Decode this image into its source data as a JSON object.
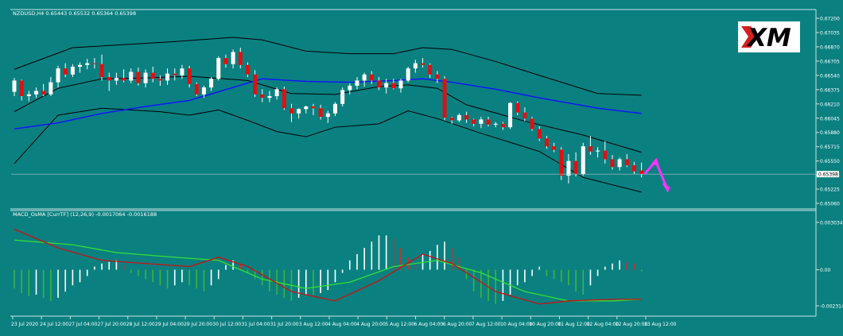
{
  "chart_data": {
    "type": "candlestick",
    "symbol_header": "NZDUSD,H4  0.65443 0.65532 0.65364 0.65398",
    "indicator_header": "MACD_OsMA [CurrTF] (12,26,9) -0.0017064 -0.0016188",
    "price_ticks": [
      "0.67200",
      "0.67035",
      "0.66870",
      "0.66705",
      "0.66540",
      "0.66375",
      "0.66210",
      "0.66045",
      "0.65880",
      "0.65715",
      "0.65550",
      "0.65385",
      "0.65225",
      "0.65060"
    ],
    "price_range": [
      0.6506,
      0.672
    ],
    "current_price_label": "0.65398",
    "current_price": 0.65398,
    "macd_ticks": [
      "0.003034",
      "0.00",
      "-0.002314"
    ],
    "macd_range": [
      -0.002314,
      0.003034
    ],
    "time_labels": [
      "23 Jul 2020",
      "24 Jul 12:00",
      "27 Jul 04:00",
      "27 Jul 20:00",
      "28 Jul 12:00",
      "29 Jul 04:00",
      "29 Jul 20:00",
      "30 Jul 12:00",
      "31 Jul 04:00",
      "31 Jul 20:00",
      "3 Aug 12:00",
      "4 Aug 04:00",
      "4 Aug 20:00",
      "5 Aug 12:00",
      "6 Aug 04:00",
      "6 Aug 20:00",
      "7 Aug 12:00",
      "10 Aug 04:00",
      "10 Aug 20:00",
      "11 Aug 12:00",
      "12 Aug 04:00",
      "12 Aug 20:00",
      "13 Aug 12:00"
    ],
    "logo_text": "XM",
    "colors": {
      "background": "#0b8080",
      "bull_candle": "#ffffff",
      "bear_candle": "#e01010",
      "wick": "#ffffff",
      "bollinger": "#000000",
      "moving_average": "#1010ff",
      "macd_line": "#cc1010",
      "signal_line": "#33e033",
      "hist_up": "#ffffff",
      "hist_down": "#3fb33f",
      "hist_red": "#c83030",
      "projection_arrow": "#ff33ff"
    },
    "candles": [
      [
        0.6635,
        0.6651,
        0.663,
        0.6648
      ],
      [
        0.6648,
        0.6649,
        0.6625,
        0.663
      ],
      [
        0.663,
        0.6636,
        0.6624,
        0.6632
      ],
      [
        0.6632,
        0.664,
        0.6628,
        0.6636
      ],
      [
        0.6636,
        0.6644,
        0.663,
        0.6632
      ],
      [
        0.6632,
        0.6652,
        0.663,
        0.6646
      ],
      [
        0.6646,
        0.6665,
        0.664,
        0.6662
      ],
      [
        0.6662,
        0.6668,
        0.6652,
        0.6655
      ],
      [
        0.6655,
        0.6667,
        0.6652,
        0.6664
      ],
      [
        0.6664,
        0.6669,
        0.6657,
        0.6666
      ],
      [
        0.6666,
        0.6673,
        0.6661,
        0.6668
      ],
      [
        0.6668,
        0.6674,
        0.6662,
        0.6667
      ],
      [
        0.6667,
        0.6678,
        0.6648,
        0.6652
      ],
      [
        0.6652,
        0.6657,
        0.6636,
        0.6648
      ],
      [
        0.6648,
        0.6657,
        0.6643,
        0.6651
      ],
      [
        0.6651,
        0.6661,
        0.6646,
        0.6648
      ],
      [
        0.6648,
        0.6662,
        0.6645,
        0.6658
      ],
      [
        0.6658,
        0.6663,
        0.6642,
        0.6645
      ],
      [
        0.6645,
        0.6661,
        0.664,
        0.6657
      ],
      [
        0.6657,
        0.6664,
        0.6646,
        0.665
      ],
      [
        0.665,
        0.6654,
        0.6642,
        0.6648
      ],
      [
        0.6648,
        0.6662,
        0.6643,
        0.6656
      ],
      [
        0.6656,
        0.6662,
        0.6648,
        0.6654
      ],
      [
        0.6654,
        0.6666,
        0.665,
        0.6662
      ],
      [
        0.6662,
        0.6665,
        0.664,
        0.6644
      ],
      [
        0.6644,
        0.6646,
        0.663,
        0.6632
      ],
      [
        0.6632,
        0.6642,
        0.6628,
        0.664
      ],
      [
        0.664,
        0.6652,
        0.6636,
        0.665
      ],
      [
        0.665,
        0.6676,
        0.6648,
        0.6674
      ],
      [
        0.6674,
        0.6678,
        0.6663,
        0.6667
      ],
      [
        0.6667,
        0.6684,
        0.6662,
        0.6681
      ],
      [
        0.6681,
        0.6686,
        0.6662,
        0.6666
      ],
      [
        0.6666,
        0.6669,
        0.6652,
        0.6655
      ],
      [
        0.6655,
        0.666,
        0.6629,
        0.6632
      ],
      [
        0.6632,
        0.6638,
        0.6623,
        0.6628
      ],
      [
        0.6628,
        0.6636,
        0.6623,
        0.663
      ],
      [
        0.663,
        0.664,
        0.6626,
        0.6638
      ],
      [
        0.6638,
        0.6641,
        0.6614,
        0.6616
      ],
      [
        0.6616,
        0.6621,
        0.66,
        0.661
      ],
      [
        0.661,
        0.6616,
        0.6604,
        0.6615
      ],
      [
        0.6615,
        0.6619,
        0.661,
        0.6618
      ],
      [
        0.6618,
        0.6621,
        0.6608,
        0.6616
      ],
      [
        0.6616,
        0.662,
        0.6603,
        0.6606
      ],
      [
        0.6606,
        0.6613,
        0.6599,
        0.661
      ],
      [
        0.661,
        0.6623,
        0.6607,
        0.6621
      ],
      [
        0.6621,
        0.664,
        0.6618,
        0.6637
      ],
      [
        0.6637,
        0.6645,
        0.6632,
        0.6642
      ],
      [
        0.6642,
        0.6652,
        0.6638,
        0.6648
      ],
      [
        0.6648,
        0.6657,
        0.6641,
        0.6655
      ],
      [
        0.6655,
        0.6659,
        0.6644,
        0.6648
      ],
      [
        0.6648,
        0.6652,
        0.6637,
        0.664
      ],
      [
        0.664,
        0.665,
        0.6633,
        0.6645
      ],
      [
        0.6645,
        0.665,
        0.6638,
        0.6639
      ],
      [
        0.6639,
        0.665,
        0.6634,
        0.6648
      ],
      [
        0.6648,
        0.6664,
        0.6646,
        0.6662
      ],
      [
        0.6662,
        0.6672,
        0.6657,
        0.6668
      ],
      [
        0.6668,
        0.6674,
        0.6663,
        0.6666
      ],
      [
        0.6666,
        0.6668,
        0.6651,
        0.6655
      ],
      [
        0.6655,
        0.6659,
        0.6645,
        0.665
      ],
      [
        0.665,
        0.6653,
        0.6602,
        0.6605
      ],
      [
        0.6605,
        0.6606,
        0.6598,
        0.6602
      ],
      [
        0.6602,
        0.661,
        0.66,
        0.6608
      ],
      [
        0.6608,
        0.6612,
        0.6599,
        0.6603
      ],
      [
        0.6603,
        0.6604,
        0.6595,
        0.6598
      ],
      [
        0.6598,
        0.6606,
        0.6593,
        0.6603
      ],
      [
        0.6603,
        0.6606,
        0.6595,
        0.6597
      ],
      [
        0.6597,
        0.66,
        0.6594,
        0.6598
      ],
      [
        0.6598,
        0.66,
        0.6591,
        0.6594
      ],
      [
        0.6594,
        0.6623,
        0.6592,
        0.6622
      ],
      [
        0.6622,
        0.6624,
        0.6608,
        0.6611
      ],
      [
        0.6611,
        0.6617,
        0.6601,
        0.6604
      ],
      [
        0.6604,
        0.6606,
        0.659,
        0.6592
      ],
      [
        0.6592,
        0.6595,
        0.6578,
        0.6581
      ],
      [
        0.6581,
        0.6584,
        0.6569,
        0.6572
      ],
      [
        0.6572,
        0.6576,
        0.6565,
        0.6568
      ],
      [
        0.6568,
        0.6571,
        0.6533,
        0.6538
      ],
      [
        0.6538,
        0.6563,
        0.6529,
        0.6555
      ],
      [
        0.6555,
        0.6565,
        0.6537,
        0.654
      ],
      [
        0.654,
        0.6576,
        0.6538,
        0.6572
      ],
      [
        0.6572,
        0.6584,
        0.6562,
        0.6566
      ],
      [
        0.6566,
        0.6571,
        0.6559,
        0.6567
      ],
      [
        0.6567,
        0.6578,
        0.6552,
        0.6557
      ],
      [
        0.6557,
        0.6562,
        0.6545,
        0.6548
      ],
      [
        0.6548,
        0.6559,
        0.6544,
        0.6557
      ],
      [
        0.6557,
        0.6563,
        0.6548,
        0.655
      ],
      [
        0.655,
        0.6554,
        0.654,
        0.6543
      ],
      [
        0.6544,
        0.6553,
        0.6536,
        0.654
      ]
    ],
    "bollinger_upper": [
      [
        0,
        0.6661
      ],
      [
        8,
        0.6686
      ],
      [
        14,
        0.6689
      ],
      [
        22,
        0.6693
      ],
      [
        30,
        0.6698
      ],
      [
        34,
        0.6695
      ],
      [
        40,
        0.6682
      ],
      [
        46,
        0.6679
      ],
      [
        52,
        0.6679
      ],
      [
        56,
        0.6686
      ],
      [
        60,
        0.6684
      ],
      [
        66,
        0.667
      ],
      [
        72,
        0.6654
      ],
      [
        80,
        0.6633
      ],
      [
        86,
        0.6631
      ]
    ],
    "bollinger_middle": [
      [
        0,
        0.6612
      ],
      [
        6,
        0.6639
      ],
      [
        12,
        0.665
      ],
      [
        18,
        0.6651
      ],
      [
        24,
        0.6653
      ],
      [
        32,
        0.6648
      ],
      [
        38,
        0.6633
      ],
      [
        44,
        0.6632
      ],
      [
        50,
        0.6641
      ],
      [
        54,
        0.6643
      ],
      [
        58,
        0.6639
      ],
      [
        62,
        0.662
      ],
      [
        70,
        0.6601
      ],
      [
        78,
        0.6585
      ],
      [
        86,
        0.6565
      ]
    ],
    "bollinger_lower": [
      [
        0,
        0.6552
      ],
      [
        6,
        0.6608
      ],
      [
        12,
        0.6616
      ],
      [
        20,
        0.6612
      ],
      [
        24,
        0.6608
      ],
      [
        28,
        0.6614
      ],
      [
        32,
        0.6602
      ],
      [
        36,
        0.6589
      ],
      [
        40,
        0.6583
      ],
      [
        44,
        0.6594
      ],
      [
        50,
        0.6598
      ],
      [
        54,
        0.6613
      ],
      [
        58,
        0.6604
      ],
      [
        64,
        0.6587
      ],
      [
        72,
        0.6566
      ],
      [
        78,
        0.6536
      ],
      [
        86,
        0.6519
      ]
    ],
    "moving_average": [
      [
        0,
        0.6592
      ],
      [
        6,
        0.6599
      ],
      [
        12,
        0.661
      ],
      [
        18,
        0.6618
      ],
      [
        24,
        0.6625
      ],
      [
        30,
        0.664
      ],
      [
        34,
        0.665
      ],
      [
        40,
        0.6647
      ],
      [
        46,
        0.6646
      ],
      [
        52,
        0.6648
      ],
      [
        56,
        0.665
      ],
      [
        60,
        0.6646
      ],
      [
        66,
        0.6638
      ],
      [
        72,
        0.6628
      ],
      [
        80,
        0.6616
      ],
      [
        86,
        0.661
      ]
    ],
    "macd_histogram": [
      -0.0012,
      -0.0015,
      -0.0017,
      -0.0016,
      -0.0018,
      -0.002,
      -0.0018,
      -0.0014,
      -0.001,
      -0.0008,
      -0.0004,
      0.0002,
      0.0004,
      0.0005,
      0.0006,
      0.0003,
      -0.0002,
      -0.0004,
      -0.0006,
      -0.0008,
      -0.001,
      -0.0012,
      -0.001,
      -0.0008,
      -0.001,
      -0.0012,
      -0.0014,
      -0.001,
      -0.0006,
      0.0003,
      0.0006,
      0.0004,
      -0.0002,
      -0.0006,
      -0.001,
      -0.0014,
      -0.0016,
      -0.0018,
      -0.002,
      -0.0018,
      -0.0016,
      -0.0016,
      -0.0015,
      -0.0013,
      -0.0008,
      -0.0002,
      0.0006,
      0.001,
      0.0014,
      0.0018,
      0.0022,
      0.0022,
      0.002,
      0.0014,
      0.0008,
      0.0004,
      0.001,
      0.0012,
      0.0016,
      0.0018,
      0.0014,
      0.0008,
      -0.0006,
      -0.0014,
      -0.0018,
      -0.002,
      -0.0022,
      -0.002,
      -0.0016,
      -0.001,
      -0.0008,
      -0.0004,
      0.0002,
      -0.0004,
      -0.0006,
      -0.0008,
      -0.001,
      -0.0014,
      -0.0016,
      -0.001,
      -0.0004,
      0.0002,
      0.0004,
      0.0006,
      0.0005,
      0.0004,
      -0.0001
    ],
    "macd_red_line": [
      [
        0,
        0.0026
      ],
      [
        6,
        0.0014
      ],
      [
        12,
        0.0006
      ],
      [
        18,
        0.0004
      ],
      [
        24,
        0.0002
      ],
      [
        28,
        0.0008
      ],
      [
        32,
        0.0002
      ],
      [
        38,
        -0.0014
      ],
      [
        44,
        -0.002
      ],
      [
        50,
        -0.0007
      ],
      [
        56,
        0.001
      ],
      [
        60,
        0.0004
      ],
      [
        66,
        -0.0014
      ],
      [
        72,
        -0.0022
      ],
      [
        76,
        -0.002
      ],
      [
        82,
        -0.0019
      ],
      [
        86,
        -0.0019
      ]
    ],
    "macd_green_line": [
      [
        0,
        0.0019
      ],
      [
        8,
        0.0016
      ],
      [
        14,
        0.0011
      ],
      [
        22,
        0.0008
      ],
      [
        28,
        0.0006
      ],
      [
        34,
        -0.0006
      ],
      [
        40,
        -0.0012
      ],
      [
        46,
        -0.0008
      ],
      [
        52,
        0.0002
      ],
      [
        58,
        0.0006
      ],
      [
        64,
        -0.0002
      ],
      [
        70,
        -0.0014
      ],
      [
        76,
        -0.002
      ],
      [
        82,
        -0.002
      ],
      [
        86,
        -0.0019
      ]
    ],
    "projection": [
      [
        0.65398,
        0.6555
      ],
      [
        0.6555,
        0.6523
      ]
    ]
  }
}
